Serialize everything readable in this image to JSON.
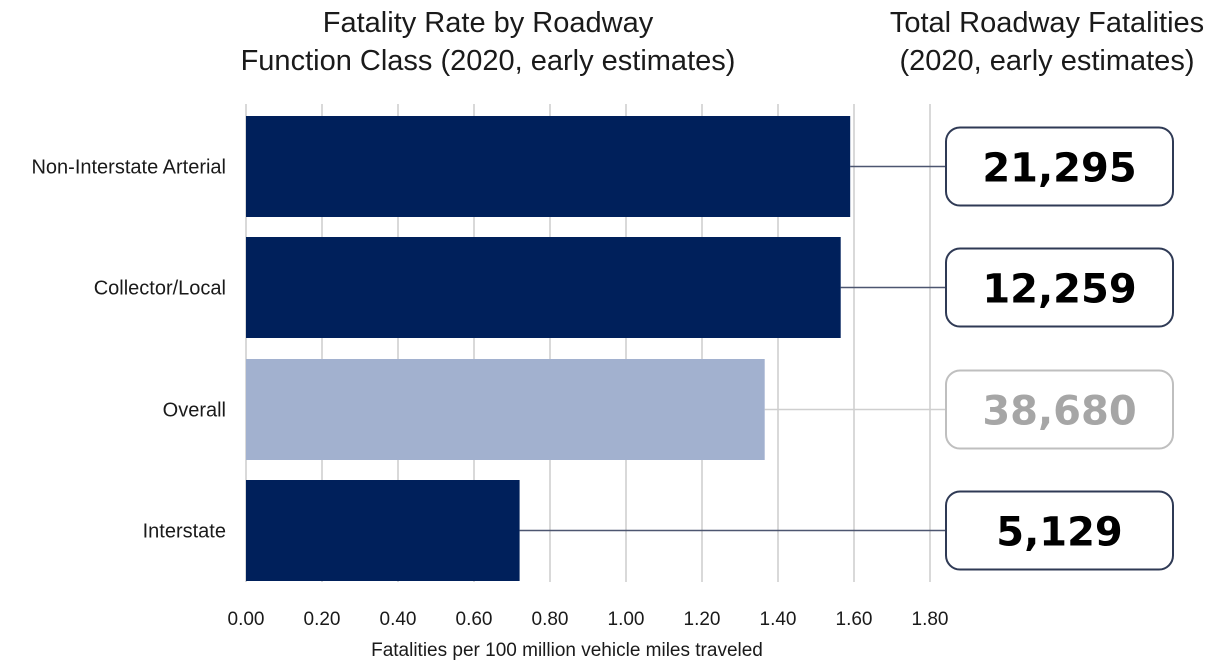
{
  "chart_data": {
    "type": "bar",
    "orientation": "horizontal",
    "title": [
      "Fatality Rate by Roadway",
      "Function Class (2020, early estimates)"
    ],
    "xlabel": "Fatalities per 100 million vehicle miles traveled",
    "xlim": [
      0,
      1.8
    ],
    "xticks": [
      "0.00",
      "0.20",
      "0.40",
      "0.60",
      "0.80",
      "1.00",
      "1.20",
      "1.40",
      "1.60",
      "1.80"
    ],
    "grid": true,
    "categories": [
      "Non-Interstate Arterial",
      "Collector/Local",
      "Overall",
      "Interstate"
    ],
    "values": [
      1.59,
      1.565,
      1.365,
      0.72
    ],
    "bar_colors": [
      "#00205b",
      "#00205b",
      "#a2b1cf",
      "#00205b"
    ],
    "side_panel": {
      "title": [
        "Total Roadway Fatalities",
        "(2020, early estimates)"
      ],
      "totals": [
        "21,295",
        "12,259",
        "38,680",
        "5,129"
      ],
      "text_colors": [
        "#000000",
        "#000000",
        "#a6a6a6",
        "#000000"
      ],
      "border_colors": [
        "#2f3a55",
        "#2f3a55",
        "#bfbfbf",
        "#2f3a55"
      ]
    }
  }
}
